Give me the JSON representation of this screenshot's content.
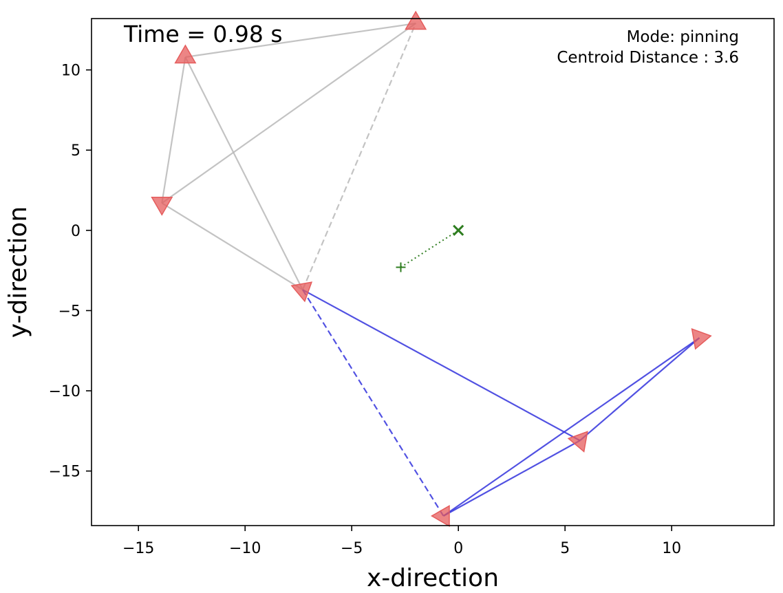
{
  "chart_data": {
    "type": "scatter",
    "title": "",
    "xlabel": "x-direction",
    "ylabel": "y-direction",
    "xlim": [
      -17.2,
      14.8
    ],
    "ylim": [
      -18.4,
      13.2
    ],
    "xticks": [
      -15,
      -10,
      -5,
      0,
      5,
      10
    ],
    "yticks": [
      10,
      5,
      0,
      -5,
      -10,
      -15
    ],
    "xtick_labels": [
      "−15",
      "−10",
      "−5",
      "0",
      "5",
      "10"
    ],
    "ytick_labels": [
      "10",
      "5",
      "0",
      "−5",
      "−10",
      "−15"
    ],
    "grid": false,
    "annotations": {
      "time": "Time = 0.98 s",
      "mode": "Mode: pinning",
      "centroid_distance": "Centroid Distance : 3.6"
    },
    "agents": [
      {
        "id": "a1",
        "x": -2.0,
        "y": 12.9,
        "heading_deg": 90
      },
      {
        "id": "a2",
        "x": -12.8,
        "y": 10.8,
        "heading_deg": 90
      },
      {
        "id": "a3",
        "x": -13.9,
        "y": 1.7,
        "heading_deg": 150
      },
      {
        "id": "a4",
        "x": -7.3,
        "y": -3.7,
        "heading_deg": 160
      },
      {
        "id": "a5",
        "x": 11.3,
        "y": -6.7,
        "heading_deg": 10
      },
      {
        "id": "a6",
        "x": 5.7,
        "y": -13.1,
        "heading_deg": -70
      },
      {
        "id": "a7",
        "x": -0.7,
        "y": -17.8,
        "heading_deg": 180
      }
    ],
    "agent_color": "#e55c5c",
    "links_gray": [
      {
        "from": [
          -12.8,
          10.8
        ],
        "to": [
          -2.0,
          12.9
        ],
        "style": "solid"
      },
      {
        "from": [
          -12.8,
          10.8
        ],
        "to": [
          -13.9,
          1.7
        ],
        "style": "solid"
      },
      {
        "from": [
          -12.8,
          10.8
        ],
        "to": [
          -7.3,
          -3.7
        ],
        "style": "solid"
      },
      {
        "from": [
          -13.9,
          1.7
        ],
        "to": [
          -2.0,
          12.9
        ],
        "style": "solid"
      },
      {
        "from": [
          -13.9,
          1.7
        ],
        "to": [
          -7.3,
          -3.7
        ],
        "style": "solid"
      },
      {
        "from": [
          -7.3,
          -3.7
        ],
        "to": [
          -2.0,
          12.9
        ],
        "style": "dashed"
      }
    ],
    "links_blue": [
      {
        "from": [
          -7.3,
          -3.7
        ],
        "to": [
          5.7,
          -13.1
        ],
        "style": "solid"
      },
      {
        "from": [
          -7.3,
          -3.7
        ],
        "to": [
          -0.7,
          -17.8
        ],
        "style": "dashed"
      },
      {
        "from": [
          -0.7,
          -17.8
        ],
        "to": [
          5.7,
          -13.1
        ],
        "style": "solid"
      },
      {
        "from": [
          -0.7,
          -17.8
        ],
        "to": [
          11.3,
          -6.7
        ],
        "style": "solid"
      },
      {
        "from": [
          5.7,
          -13.1
        ],
        "to": [
          11.3,
          -6.7
        ],
        "style": "solid"
      }
    ],
    "gray_color": "#b8b8b8",
    "blue_color": "#3333dd",
    "target": {
      "x": 0.0,
      "y": 0.0,
      "marker": "x"
    },
    "centroid": {
      "x": -2.7,
      "y": -2.3,
      "marker": "+"
    },
    "target_color": "#2e7d1f"
  }
}
